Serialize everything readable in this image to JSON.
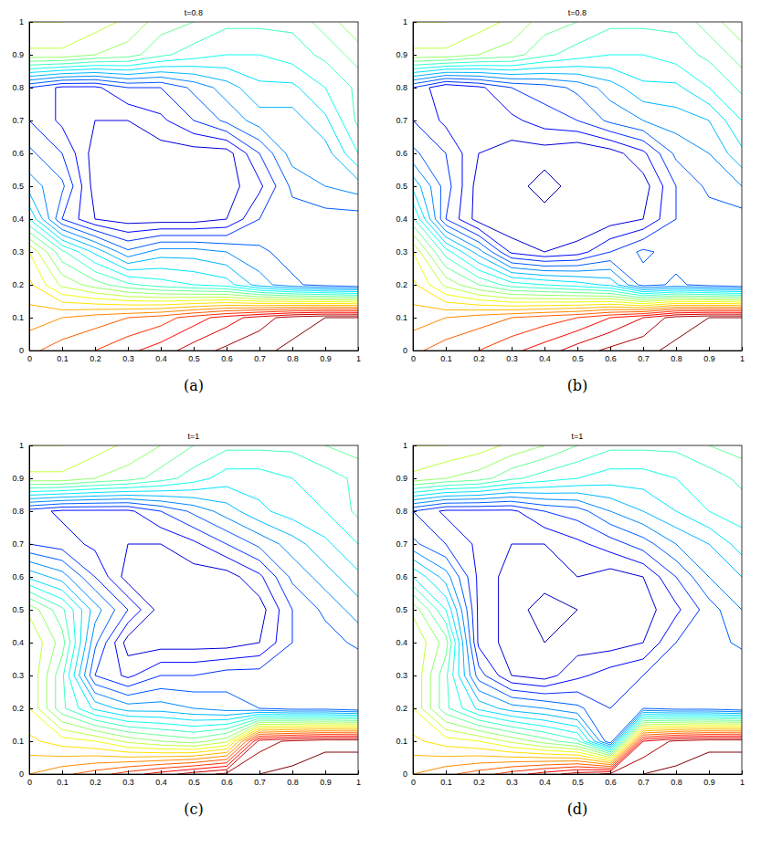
{
  "chart_data": [
    {
      "type": "contour",
      "title": "t=0.8",
      "caption": "(a)",
      "xlim": [
        0,
        1
      ],
      "ylim": [
        0,
        1
      ],
      "xticks": [
        0,
        0.1,
        0.2,
        0.3,
        0.4,
        0.5,
        0.6,
        0.7,
        0.8,
        0.9,
        1
      ],
      "yticks": [
        0,
        0.1,
        0.2,
        0.3,
        0.4,
        0.5,
        0.6,
        0.7,
        0.8,
        0.9,
        1
      ],
      "x": [
        0,
        0.1,
        0.2,
        0.3,
        0.4,
        0.5,
        0.6,
        0.7,
        0.8,
        0.9,
        1
      ],
      "y": [
        0,
        0.1,
        0.2,
        0.3,
        0.4,
        0.5,
        0.6,
        0.7,
        0.8,
        0.9,
        1
      ],
      "levels": [
        0.04,
        0.08,
        0.12,
        0.16,
        0.2,
        0.24,
        0.28,
        0.32,
        0.36,
        0.4,
        0.44,
        0.48,
        0.52,
        0.56,
        0.6,
        0.64,
        0.68,
        0.72,
        0.76,
        0.8,
        0.84,
        0.88,
        0.92,
        0.96
      ],
      "z": [
        [
          0.75,
          0.78,
          0.8,
          0.83,
          0.86,
          0.9,
          0.93,
          0.95,
          0.97,
          0.98,
          0.98
        ],
        [
          0.7,
          0.72,
          0.74,
          0.76,
          0.78,
          0.82,
          0.86,
          0.9,
          0.94,
          0.96,
          0.96
        ],
        [
          0.65,
          0.55,
          0.5,
          0.45,
          0.42,
          0.4,
          0.38,
          0.3,
          0.25,
          0.22,
          0.2
        ],
        [
          0.6,
          0.45,
          0.35,
          0.25,
          0.3,
          0.3,
          0.28,
          0.25,
          0.22,
          0.2,
          0.2
        ],
        [
          0.4,
          0.2,
          0.12,
          0.1,
          0.1,
          0.1,
          0.12,
          0.2,
          0.22,
          0.22,
          0.22
        ],
        [
          0.3,
          0.25,
          0.1,
          0.1,
          0.08,
          0.08,
          0.1,
          0.15,
          0.25,
          0.28,
          0.3
        ],
        [
          0.25,
          0.2,
          0.1,
          0.1,
          0.1,
          0.1,
          0.1,
          0.2,
          0.3,
          0.3,
          0.4
        ],
        [
          0.2,
          0.15,
          0.12,
          0.12,
          0.15,
          0.2,
          0.25,
          0.3,
          0.3,
          0.35,
          0.45
        ],
        [
          0.2,
          0.15,
          0.15,
          0.2,
          0.2,
          0.25,
          0.3,
          0.35,
          0.35,
          0.4,
          0.45
        ],
        [
          0.55,
          0.55,
          0.52,
          0.5,
          0.45,
          0.42,
          0.4,
          0.4,
          0.42,
          0.45,
          0.5
        ],
        [
          0.6,
          0.6,
          0.58,
          0.55,
          0.5,
          0.48,
          0.45,
          0.45,
          0.45,
          0.5,
          0.55
        ]
      ]
    },
    {
      "type": "contour",
      "title": "t=0.8",
      "caption": "(b)",
      "xlim": [
        0,
        1
      ],
      "ylim": [
        0,
        1
      ],
      "xticks": [
        0,
        0.1,
        0.2,
        0.3,
        0.4,
        0.5,
        0.6,
        0.7,
        0.8,
        0.9,
        1
      ],
      "yticks": [
        0,
        0.1,
        0.2,
        0.3,
        0.4,
        0.5,
        0.6,
        0.7,
        0.8,
        0.9,
        1
      ],
      "x": [
        0,
        0.1,
        0.2,
        0.3,
        0.4,
        0.5,
        0.6,
        0.7,
        0.8,
        0.9,
        1
      ],
      "y": [
        0,
        0.1,
        0.2,
        0.3,
        0.4,
        0.5,
        0.6,
        0.7,
        0.8,
        0.9,
        1
      ],
      "levels": [
        0.04,
        0.08,
        0.12,
        0.16,
        0.2,
        0.24,
        0.28,
        0.32,
        0.36,
        0.4,
        0.44,
        0.48,
        0.52,
        0.56,
        0.6,
        0.64,
        0.68,
        0.72,
        0.76,
        0.8,
        0.84,
        0.88,
        0.92,
        0.96
      ],
      "z": [
        [
          0.75,
          0.78,
          0.8,
          0.83,
          0.86,
          0.9,
          0.93,
          0.95,
          0.97,
          0.98,
          0.98
        ],
        [
          0.7,
          0.72,
          0.74,
          0.76,
          0.78,
          0.8,
          0.84,
          0.88,
          0.94,
          0.96,
          0.96
        ],
        [
          0.65,
          0.55,
          0.48,
          0.42,
          0.4,
          0.38,
          0.35,
          0.22,
          0.25,
          0.22,
          0.2
        ],
        [
          0.6,
          0.42,
          0.3,
          0.15,
          0.12,
          0.14,
          0.2,
          0.25,
          0.22,
          0.2,
          0.2
        ],
        [
          0.45,
          0.2,
          0.1,
          0.08,
          0.1,
          0.08,
          0.1,
          0.12,
          0.2,
          0.22,
          0.22
        ],
        [
          0.35,
          0.22,
          0.1,
          0.1,
          0.06,
          0.1,
          0.08,
          0.1,
          0.2,
          0.25,
          0.28
        ],
        [
          0.25,
          0.2,
          0.12,
          0.1,
          0.1,
          0.08,
          0.1,
          0.15,
          0.25,
          0.28,
          0.35
        ],
        [
          0.2,
          0.15,
          0.12,
          0.15,
          0.18,
          0.2,
          0.25,
          0.28,
          0.3,
          0.32,
          0.4
        ],
        [
          0.2,
          0.12,
          0.15,
          0.2,
          0.22,
          0.25,
          0.3,
          0.35,
          0.35,
          0.4,
          0.45
        ],
        [
          0.55,
          0.55,
          0.52,
          0.5,
          0.45,
          0.42,
          0.4,
          0.4,
          0.42,
          0.45,
          0.5
        ],
        [
          0.6,
          0.6,
          0.58,
          0.55,
          0.5,
          0.48,
          0.45,
          0.45,
          0.45,
          0.5,
          0.55
        ]
      ]
    },
    {
      "type": "contour",
      "title": "t=1",
      "caption": "(c)",
      "xlim": [
        0,
        1
      ],
      "ylim": [
        0,
        1
      ],
      "xticks": [
        0,
        0.1,
        0.2,
        0.3,
        0.4,
        0.5,
        0.6,
        0.7,
        0.8,
        0.9,
        1
      ],
      "yticks": [
        0,
        0.1,
        0.2,
        0.3,
        0.4,
        0.5,
        0.6,
        0.7,
        0.8,
        0.9,
        1
      ],
      "x": [
        0,
        0.1,
        0.2,
        0.3,
        0.4,
        0.5,
        0.6,
        0.7,
        0.8,
        0.9,
        1
      ],
      "y": [
        0,
        0.1,
        0.2,
        0.3,
        0.4,
        0.5,
        0.6,
        0.7,
        0.8,
        0.9,
        1
      ],
      "levels": [
        0.04,
        0.08,
        0.12,
        0.16,
        0.2,
        0.24,
        0.28,
        0.32,
        0.36,
        0.4,
        0.44,
        0.48,
        0.52,
        0.56,
        0.6,
        0.64,
        0.68,
        0.72,
        0.76,
        0.8,
        0.84,
        0.88,
        0.92,
        0.96
      ],
      "z": [
        [
          0.72,
          0.75,
          0.78,
          0.82,
          0.86,
          0.9,
          0.93,
          0.96,
          0.97,
          0.98,
          0.98
        ],
        [
          0.65,
          0.62,
          0.6,
          0.55,
          0.52,
          0.5,
          0.55,
          0.9,
          0.93,
          0.95,
          0.95
        ],
        [
          0.6,
          0.45,
          0.35,
          0.3,
          0.3,
          0.28,
          0.26,
          0.24,
          0.22,
          0.22,
          0.2
        ],
        [
          0.6,
          0.45,
          0.2,
          0.15,
          0.2,
          0.2,
          0.22,
          0.22,
          0.2,
          0.2,
          0.2
        ],
        [
          0.6,
          0.5,
          0.25,
          0.1,
          0.1,
          0.1,
          0.1,
          0.12,
          0.2,
          0.22,
          0.25
        ],
        [
          0.55,
          0.45,
          0.3,
          0.2,
          0.1,
          0.08,
          0.08,
          0.1,
          0.2,
          0.25,
          0.3
        ],
        [
          0.35,
          0.3,
          0.2,
          0.1,
          0.1,
          0.1,
          0.1,
          0.15,
          0.25,
          0.3,
          0.35
        ],
        [
          0.2,
          0.18,
          0.15,
          0.12,
          0.12,
          0.15,
          0.2,
          0.25,
          0.3,
          0.35,
          0.4
        ],
        [
          0.18,
          0.15,
          0.15,
          0.15,
          0.2,
          0.25,
          0.3,
          0.35,
          0.38,
          0.4,
          0.45
        ],
        [
          0.55,
          0.55,
          0.52,
          0.5,
          0.46,
          0.42,
          0.38,
          0.38,
          0.4,
          0.42,
          0.45
        ],
        [
          0.6,
          0.6,
          0.58,
          0.55,
          0.52,
          0.48,
          0.45,
          0.45,
          0.45,
          0.48,
          0.5
        ]
      ]
    },
    {
      "type": "contour",
      "title": "t=1",
      "caption": "(d)",
      "xlim": [
        0,
        1
      ],
      "ylim": [
        0,
        1
      ],
      "xticks": [
        0,
        0.1,
        0.2,
        0.3,
        0.4,
        0.5,
        0.6,
        0.7,
        0.8,
        0.9,
        1
      ],
      "yticks": [
        0,
        0.1,
        0.2,
        0.3,
        0.4,
        0.5,
        0.6,
        0.7,
        0.8,
        0.9,
        1
      ],
      "x": [
        0,
        0.1,
        0.2,
        0.3,
        0.4,
        0.5,
        0.6,
        0.7,
        0.8,
        0.9,
        1
      ],
      "y": [
        0,
        0.1,
        0.2,
        0.3,
        0.4,
        0.5,
        0.6,
        0.7,
        0.8,
        0.9,
        1
      ],
      "levels": [
        0.04,
        0.08,
        0.12,
        0.16,
        0.2,
        0.24,
        0.28,
        0.32,
        0.36,
        0.4,
        0.44,
        0.48,
        0.52,
        0.56,
        0.6,
        0.64,
        0.68,
        0.72,
        0.76,
        0.8,
        0.84,
        0.88,
        0.92,
        0.96
      ],
      "z": [
        [
          0.72,
          0.75,
          0.78,
          0.82,
          0.86,
          0.9,
          0.93,
          0.96,
          0.97,
          0.98,
          0.98
        ],
        [
          0.65,
          0.62,
          0.6,
          0.55,
          0.5,
          0.45,
          0.2,
          0.88,
          0.93,
          0.95,
          0.95
        ],
        [
          0.6,
          0.45,
          0.35,
          0.3,
          0.28,
          0.25,
          0.2,
          0.24,
          0.22,
          0.22,
          0.2
        ],
        [
          0.6,
          0.45,
          0.22,
          0.12,
          0.1,
          0.15,
          0.18,
          0.2,
          0.2,
          0.2,
          0.2
        ],
        [
          0.6,
          0.5,
          0.15,
          0.1,
          0.08,
          0.1,
          0.1,
          0.12,
          0.2,
          0.22,
          0.25
        ],
        [
          0.55,
          0.4,
          0.15,
          0.1,
          0.06,
          0.08,
          0.1,
          0.1,
          0.15,
          0.22,
          0.28
        ],
        [
          0.4,
          0.3,
          0.15,
          0.1,
          0.1,
          0.12,
          0.1,
          0.12,
          0.2,
          0.28,
          0.32
        ],
        [
          0.25,
          0.2,
          0.15,
          0.12,
          0.12,
          0.15,
          0.18,
          0.22,
          0.28,
          0.32,
          0.38
        ],
        [
          0.2,
          0.15,
          0.15,
          0.15,
          0.2,
          0.22,
          0.28,
          0.32,
          0.36,
          0.4,
          0.42
        ],
        [
          0.55,
          0.52,
          0.5,
          0.45,
          0.42,
          0.4,
          0.38,
          0.38,
          0.4,
          0.42,
          0.45
        ],
        [
          0.6,
          0.6,
          0.58,
          0.55,
          0.52,
          0.48,
          0.45,
          0.45,
          0.45,
          0.48,
          0.5
        ]
      ]
    }
  ]
}
